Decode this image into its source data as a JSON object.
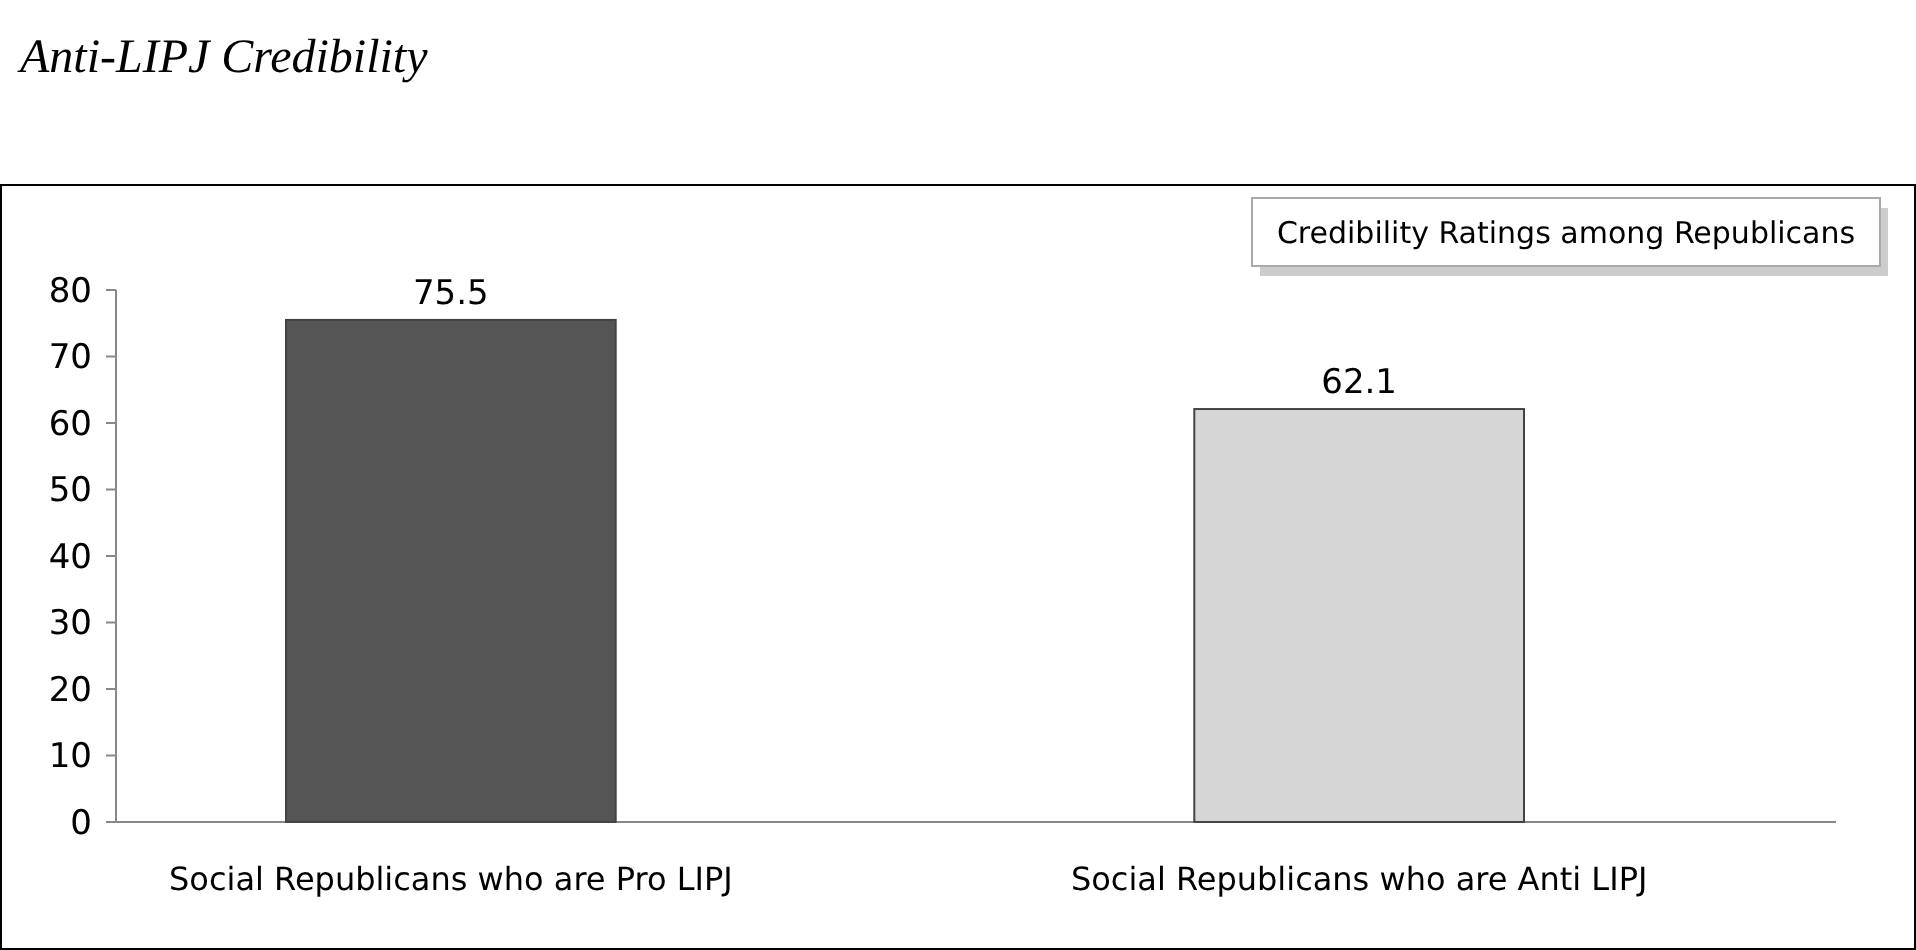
{
  "chart_data": {
    "type": "bar",
    "title": "Anti-LIPJ Credibility",
    "subtitle": "Credibility Ratings among Republicans",
    "categories": [
      "Social Republicans who are Pro LIPJ",
      "Social Republicans who are Anti LIPJ"
    ],
    "values": [
      75.5,
      62.1
    ],
    "colors": [
      "#555555",
      "#d6d6d6"
    ],
    "ylim": [
      0,
      80
    ],
    "yticks": [
      0,
      10,
      20,
      30,
      40,
      50,
      60,
      70,
      80
    ],
    "grid": false,
    "data_labels": true
  }
}
